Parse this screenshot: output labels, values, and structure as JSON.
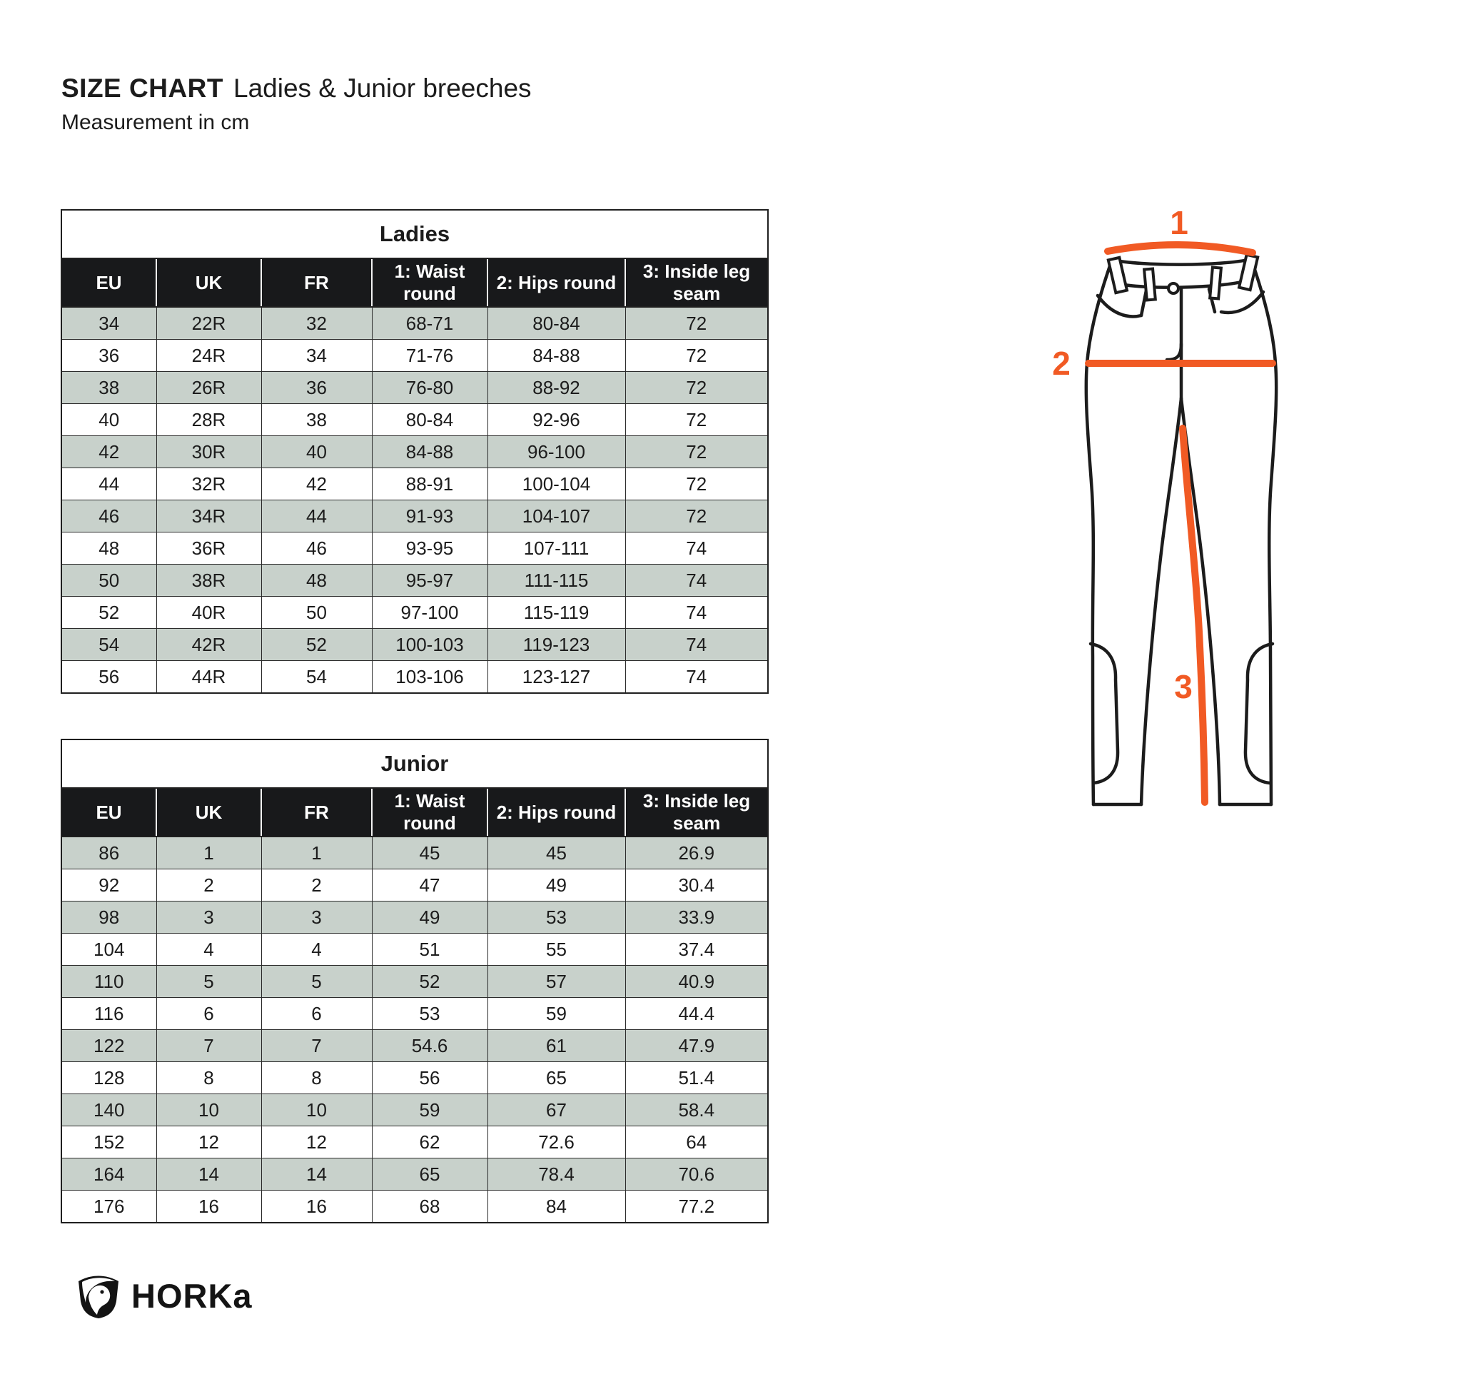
{
  "page": {
    "title_bold": "SIZE CHART",
    "title_rest": "Ladies & Junior breeches",
    "subtitle": "Measurement in cm"
  },
  "colors": {
    "accent_orange": "#F15A24",
    "header_bg": "#18191B",
    "alt_row_bg": "#C8D1CB",
    "line_black": "#1F1F1F"
  },
  "tables": {
    "ladies": {
      "title": "Ladies",
      "columns": [
        "EU",
        "UK",
        "FR",
        "1: Waist round",
        "2: Hips round",
        "3: Inside leg seam"
      ],
      "rows": [
        [
          "34",
          "22R",
          "32",
          "68-71",
          "80-84",
          "72"
        ],
        [
          "36",
          "24R",
          "34",
          "71-76",
          "84-88",
          "72"
        ],
        [
          "38",
          "26R",
          "36",
          "76-80",
          "88-92",
          "72"
        ],
        [
          "40",
          "28R",
          "38",
          "80-84",
          "92-96",
          "72"
        ],
        [
          "42",
          "30R",
          "40",
          "84-88",
          "96-100",
          "72"
        ],
        [
          "44",
          "32R",
          "42",
          "88-91",
          "100-104",
          "72"
        ],
        [
          "46",
          "34R",
          "44",
          "91-93",
          "104-107",
          "72"
        ],
        [
          "48",
          "36R",
          "46",
          "93-95",
          "107-111",
          "74"
        ],
        [
          "50",
          "38R",
          "48",
          "95-97",
          "111-115",
          "74"
        ],
        [
          "52",
          "40R",
          "50",
          "97-100",
          "115-119",
          "74"
        ],
        [
          "54",
          "42R",
          "52",
          "100-103",
          "119-123",
          "74"
        ],
        [
          "56",
          "44R",
          "54",
          "103-106",
          "123-127",
          "74"
        ]
      ]
    },
    "junior": {
      "title": "Junior",
      "columns": [
        "EU",
        "UK",
        "FR",
        "1: Waist round",
        "2: Hips round",
        "3: Inside leg seam"
      ],
      "rows": [
        [
          "86",
          "1",
          "1",
          "45",
          "45",
          "26.9"
        ],
        [
          "92",
          "2",
          "2",
          "47",
          "49",
          "30.4"
        ],
        [
          "98",
          "3",
          "3",
          "49",
          "53",
          "33.9"
        ],
        [
          "104",
          "4",
          "4",
          "51",
          "55",
          "37.4"
        ],
        [
          "110",
          "5",
          "5",
          "52",
          "57",
          "40.9"
        ],
        [
          "116",
          "6",
          "6",
          "53",
          "59",
          "44.4"
        ],
        [
          "122",
          "7",
          "7",
          "54.6",
          "61",
          "47.9"
        ],
        [
          "128",
          "8",
          "8",
          "56",
          "65",
          "51.4"
        ],
        [
          "140",
          "10",
          "10",
          "59",
          "67",
          "58.4"
        ],
        [
          "152",
          "12",
          "12",
          "62",
          "72.6",
          "64"
        ],
        [
          "164",
          "14",
          "14",
          "65",
          "78.4",
          "70.6"
        ],
        [
          "176",
          "16",
          "16",
          "68",
          "84",
          "77.2"
        ]
      ]
    }
  },
  "diagram": {
    "label_waist": "1",
    "label_hips": "2",
    "label_inside_leg": "3"
  },
  "logo": {
    "brand": "HORKa"
  }
}
